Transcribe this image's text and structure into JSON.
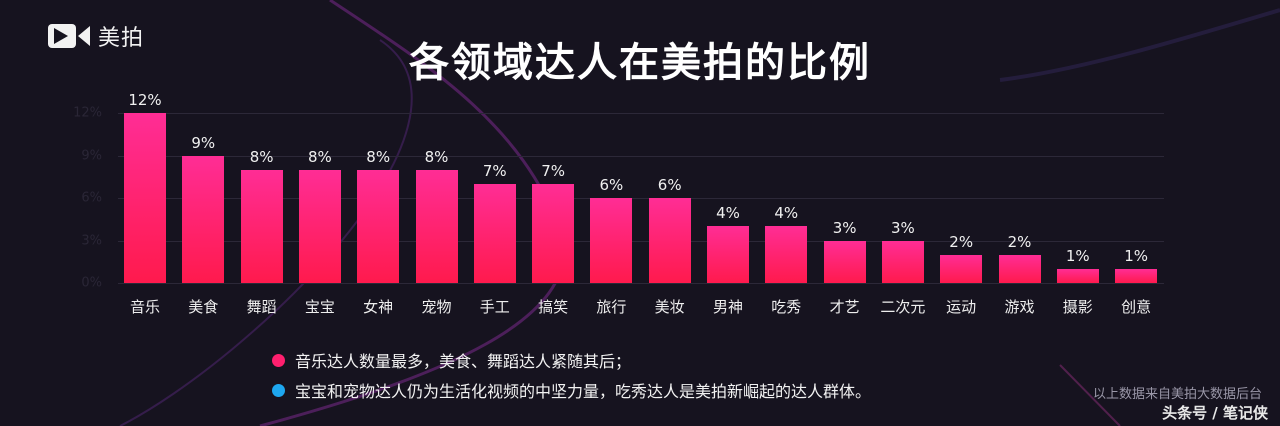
{
  "brand": {
    "logo_text": "美拍",
    "logo_icon": "video-camera-play-icon"
  },
  "header": {
    "title": "各领域达人在美拍的比例"
  },
  "colors": {
    "bar_top": "#ff2d95",
    "bar_bottom": "#ff1a4d",
    "background": "#16131f",
    "bullet_pink": "#ff1f6e",
    "bullet_blue": "#1ea7f0"
  },
  "chart_data": {
    "type": "bar",
    "title": "各领域达人在美拍的比例",
    "xlabel": "",
    "ylabel": "",
    "ylim": [
      0,
      12
    ],
    "yticks": [
      "0%",
      "3%",
      "6%",
      "9%",
      "12%"
    ],
    "grid": true,
    "categories": [
      "音乐",
      "美食",
      "舞蹈",
      "宝宝",
      "女神",
      "宠物",
      "手工",
      "搞笑",
      "旅行",
      "美妆",
      "男神",
      "吃秀",
      "才艺",
      "二次元",
      "运动",
      "游戏",
      "摄影",
      "创意"
    ],
    "values": [
      12,
      9,
      8,
      8,
      8,
      8,
      7,
      7,
      6,
      6,
      4,
      4,
      3,
      3,
      2,
      2,
      1,
      1
    ],
    "value_labels": [
      "12%",
      "9%",
      "8%",
      "8%",
      "8%",
      "8%",
      "7%",
      "7%",
      "6%",
      "6%",
      "4%",
      "4%",
      "3%",
      "3%",
      "2%",
      "2%",
      "1%",
      "1%"
    ]
  },
  "notes": [
    {
      "bullet_color": "#ff1f6e",
      "text": "音乐达人数量最多，美食、舞蹈达人紧随其后；"
    },
    {
      "bullet_color": "#1ea7f0",
      "text": "宝宝和宠物达人仍为生活化视频的中坚力量，吃秀达人是美拍新崛起的达人群体。"
    }
  ],
  "footer": {
    "source": "以上数据来自美拍大数据后台",
    "credit": "头条号 / 笔记侠"
  }
}
